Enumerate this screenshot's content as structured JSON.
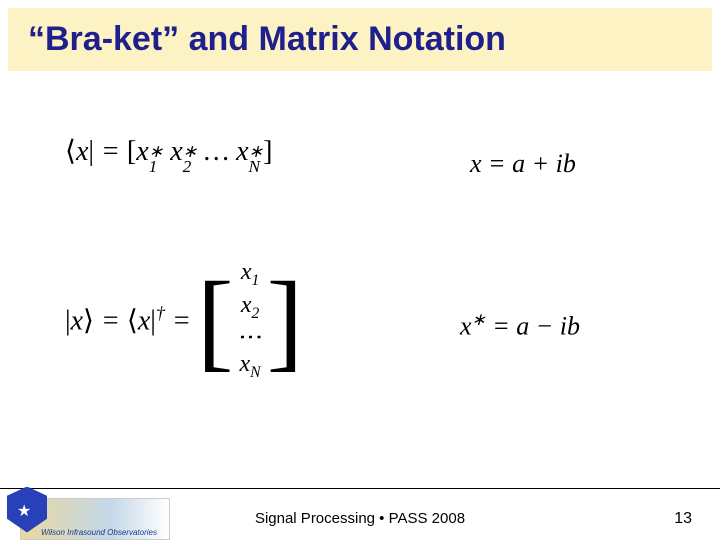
{
  "title": "“Bra-ket” and Matrix Notation",
  "title_color": "#20208c",
  "title_bg": "#fcf2c4",
  "equations": {
    "bra": {
      "lhs_open": "⟨",
      "lhs_var": "x",
      "lhs_bar": "|",
      "eq": " = ",
      "open_br": "[",
      "t1_base": "x",
      "t1_sup": "∗",
      "t1_sub": "1",
      "sp1": " ",
      "t2_base": "x",
      "t2_sup": "∗",
      "t2_sub": "2",
      "dots": " … ",
      "tn_base": "x",
      "tn_sup": "∗",
      "tn_sub": "N",
      "close_br": "]"
    },
    "x_def": "x = a + ib",
    "ket": {
      "lhs_bar1": "|",
      "lhs_var": "x",
      "lhs_close": "⟩",
      "eq1": " = ",
      "bra_open": "⟨",
      "bra_var": "x",
      "bra_bar": "|",
      "dag": "†",
      "eq2": " = ",
      "col1": "x",
      "col1_sub": "1",
      "col2": "x",
      "col2_sub": "2",
      "vdots": "⋮",
      "coln": "x",
      "coln_sub": "N"
    },
    "xstar": {
      "base": "x",
      "sup": "∗",
      "rest": " = a − ib"
    }
  },
  "footer": {
    "center": "Signal Processing • PASS 2008",
    "page": "13",
    "logo_caption": "Wilson Infrasound Observatories"
  }
}
